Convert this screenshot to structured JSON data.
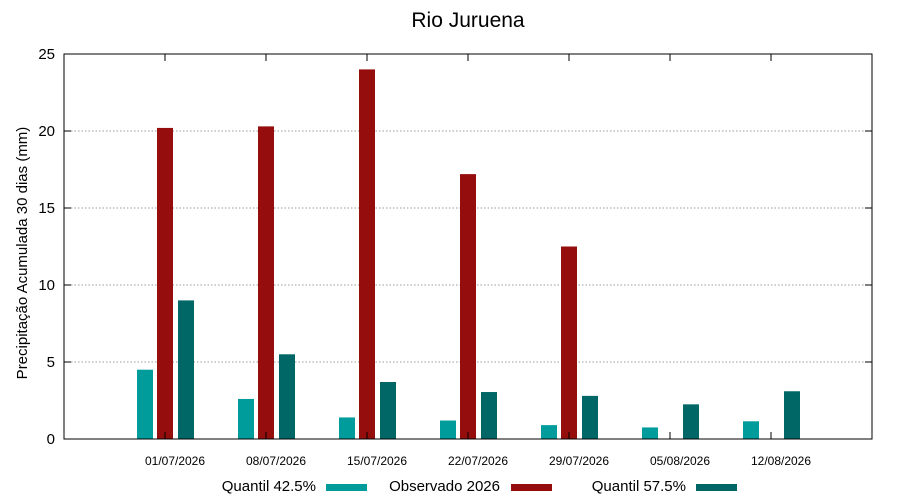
{
  "chart_data": {
    "type": "bar",
    "title": "Rio Juruena",
    "xlabel": "",
    "ylabel": "Precipitação Acumulada 30 dias (mm)",
    "ylim": [
      0,
      25
    ],
    "yticks": [
      0,
      5,
      10,
      15,
      20,
      25
    ],
    "grid": "horizontal dotted",
    "legend": "bottom",
    "categories": [
      "01/07/2026",
      "08/07/2026",
      "15/07/2026",
      "22/07/2026",
      "29/07/2026",
      "05/08/2026",
      "12/08/2026"
    ],
    "series": [
      {
        "name": "Quantil 42.5%",
        "color": "#009c9c",
        "values": [
          4.5,
          2.6,
          1.4,
          1.2,
          0.9,
          0.75,
          1.15
        ]
      },
      {
        "name": "Observado 2026",
        "color": "#960d0d",
        "values": [
          20.2,
          20.3,
          24.0,
          17.2,
          12.5,
          null,
          null
        ]
      },
      {
        "name": "Quantil 57.5%",
        "color": "#006666",
        "values": [
          9.0,
          5.5,
          3.7,
          3.05,
          2.8,
          2.25,
          3.1
        ]
      }
    ]
  }
}
